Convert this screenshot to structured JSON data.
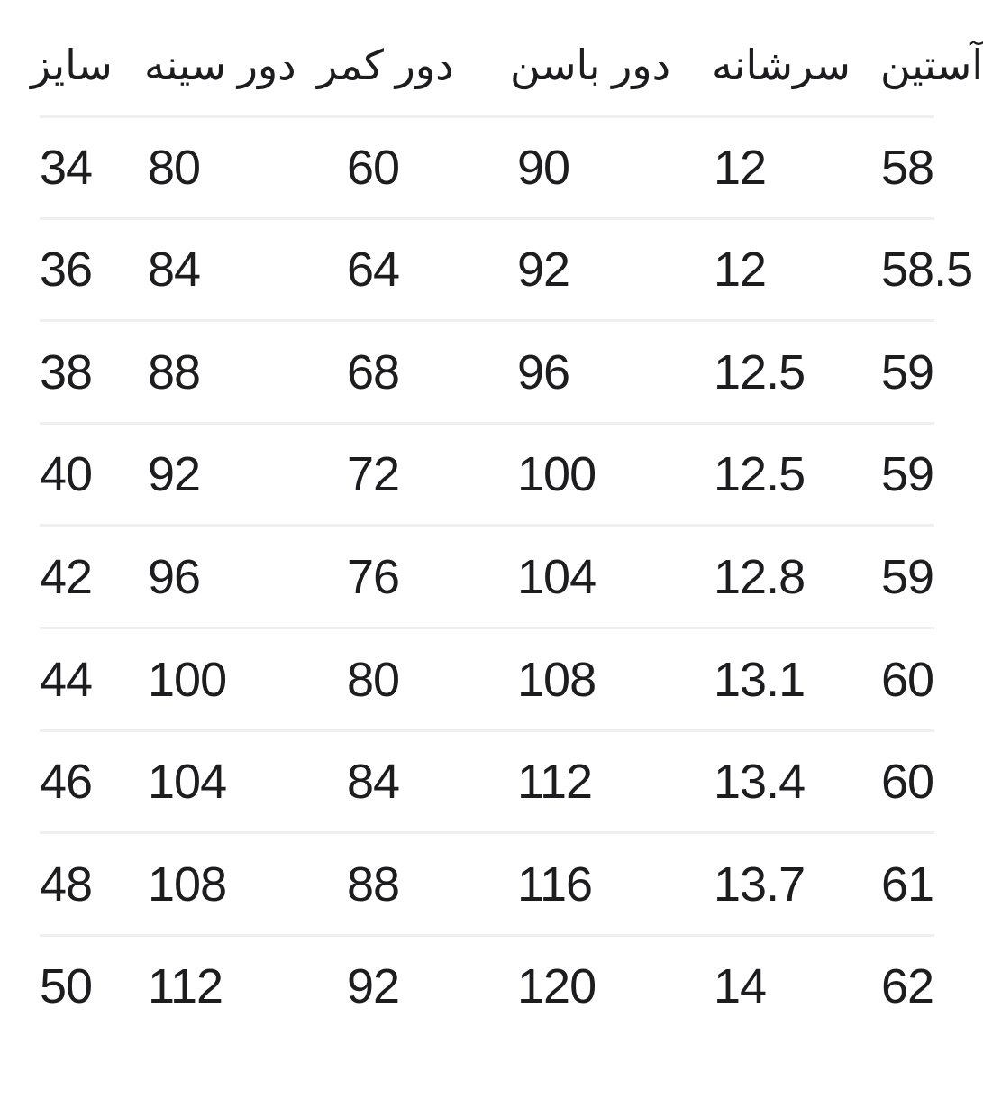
{
  "page": {
    "background": "#ffffff",
    "text_color": "#1d1d1f",
    "divider_color": "#efefef",
    "note": "size chart table, rightmost column clipped by viewport edge"
  },
  "table": {
    "direction": "rtl",
    "columns": [
      {
        "key": "size",
        "label": "سایز"
      },
      {
        "key": "chest",
        "label": "دور سینه"
      },
      {
        "key": "waist",
        "label": "دور کمر"
      },
      {
        "key": "hip",
        "label": "دور باسن"
      },
      {
        "key": "shoulder",
        "label": "سرشانه"
      },
      {
        "key": "sleeve",
        "label": "آستین",
        "clipped": true
      }
    ],
    "rows": [
      [
        "34",
        "80",
        "60",
        "90",
        "12",
        "58"
      ],
      [
        "36",
        "84",
        "64",
        "92",
        "12",
        "58.5"
      ],
      [
        "38",
        "88",
        "68",
        "96",
        "12.5",
        "59"
      ],
      [
        "40",
        "92",
        "72",
        "100",
        "12.5",
        "59"
      ],
      [
        "42",
        "96",
        "76",
        "104",
        "12.8",
        "59"
      ],
      [
        "44",
        "100",
        "80",
        "108",
        "13.1",
        "60"
      ],
      [
        "46",
        "104",
        "84",
        "112",
        "13.4",
        "60"
      ],
      [
        "48",
        "108",
        "88",
        "116",
        "13.7",
        "61"
      ],
      [
        "50",
        "112",
        "92",
        "120",
        "14",
        "62"
      ]
    ]
  }
}
